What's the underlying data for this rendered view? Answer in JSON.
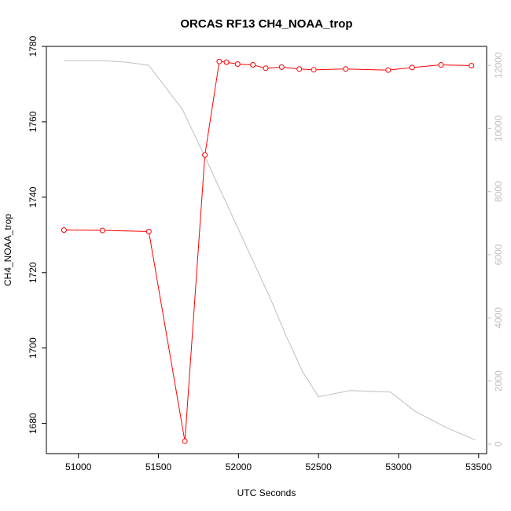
{
  "chart_data": {
    "type": "line",
    "title": "ORCAS RF13 CH4_NOAA_trop",
    "xlabel": "UTC Seconds",
    "ylabel": "CH4_NOAA_trop",
    "xlim": [
      50800,
      53550
    ],
    "ylim": [
      1672,
      1780
    ],
    "y2lim": [
      -300,
      12600
    ],
    "x_ticks": [
      51000,
      51500,
      52000,
      52500,
      53000,
      53500
    ],
    "y_ticks": [
      1680,
      1700,
      1720,
      1740,
      1760,
      1780
    ],
    "y2_ticks": [
      0,
      2000,
      4000,
      6000,
      8000,
      10000,
      12000
    ],
    "colors": {
      "ch4": "#ff0000",
      "altitude": "#bebebe"
    },
    "series": [
      {
        "axis": "left",
        "marker": "open-circle",
        "x": [
          50910,
          51150,
          51440,
          51665,
          51790,
          51880,
          51925,
          51995,
          52090,
          52170,
          52270,
          52380,
          52470,
          52670,
          52935,
          53085,
          53265,
          53455
        ],
        "y": [
          1731.3,
          1731.2,
          1730.9,
          1675.3,
          1751.2,
          1776.0,
          1775.8,
          1775.3,
          1775.1,
          1774.2,
          1774.5,
          1774.0,
          1773.8,
          1774.0,
          1773.7,
          1774.4,
          1775.1,
          1774.9
        ]
      },
      {
        "axis": "right",
        "x": [
          50910,
          51150,
          51300,
          51440,
          51650,
          51800,
          52000,
          52200,
          52300,
          52400,
          52500,
          52700,
          52950,
          53100,
          53300,
          53480
        ],
        "y": [
          12150,
          12150,
          12100,
          12000,
          10600,
          9000,
          6800,
          4600,
          3400,
          2300,
          1500,
          1700,
          1650,
          1050,
          520,
          130
        ]
      }
    ]
  }
}
